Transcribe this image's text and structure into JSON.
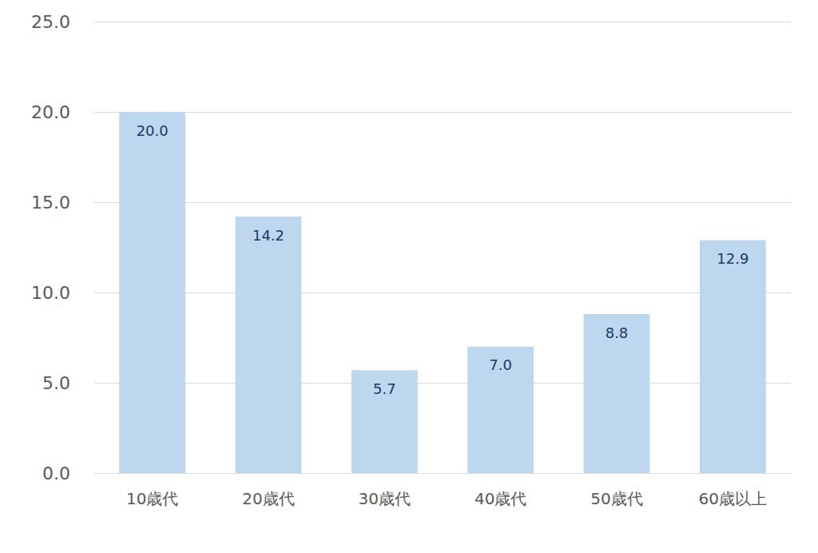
{
  "chart_data": {
    "type": "bar",
    "categories": [
      "10歳代",
      "20歳代",
      "30歳代",
      "40歳代",
      "50歳代",
      "60歳以上"
    ],
    "values": [
      20.0,
      14.2,
      5.7,
      7.0,
      8.8,
      12.9
    ],
    "value_labels": [
      "20.0",
      "14.2",
      "5.7",
      "7.0",
      "8.8",
      "12.9"
    ],
    "color": "#bdd7ee",
    "ylim": [
      0,
      25
    ],
    "yticks": [
      {
        "value": 0,
        "label": "0.0"
      },
      {
        "value": 5,
        "label": "5.0"
      },
      {
        "value": 10,
        "label": "10.0"
      },
      {
        "value": 15,
        "label": "15.0"
      },
      {
        "value": 20,
        "label": "20.0"
      },
      {
        "value": 25,
        "label": "25.0"
      }
    ],
    "grid": true,
    "data_labels": true
  }
}
